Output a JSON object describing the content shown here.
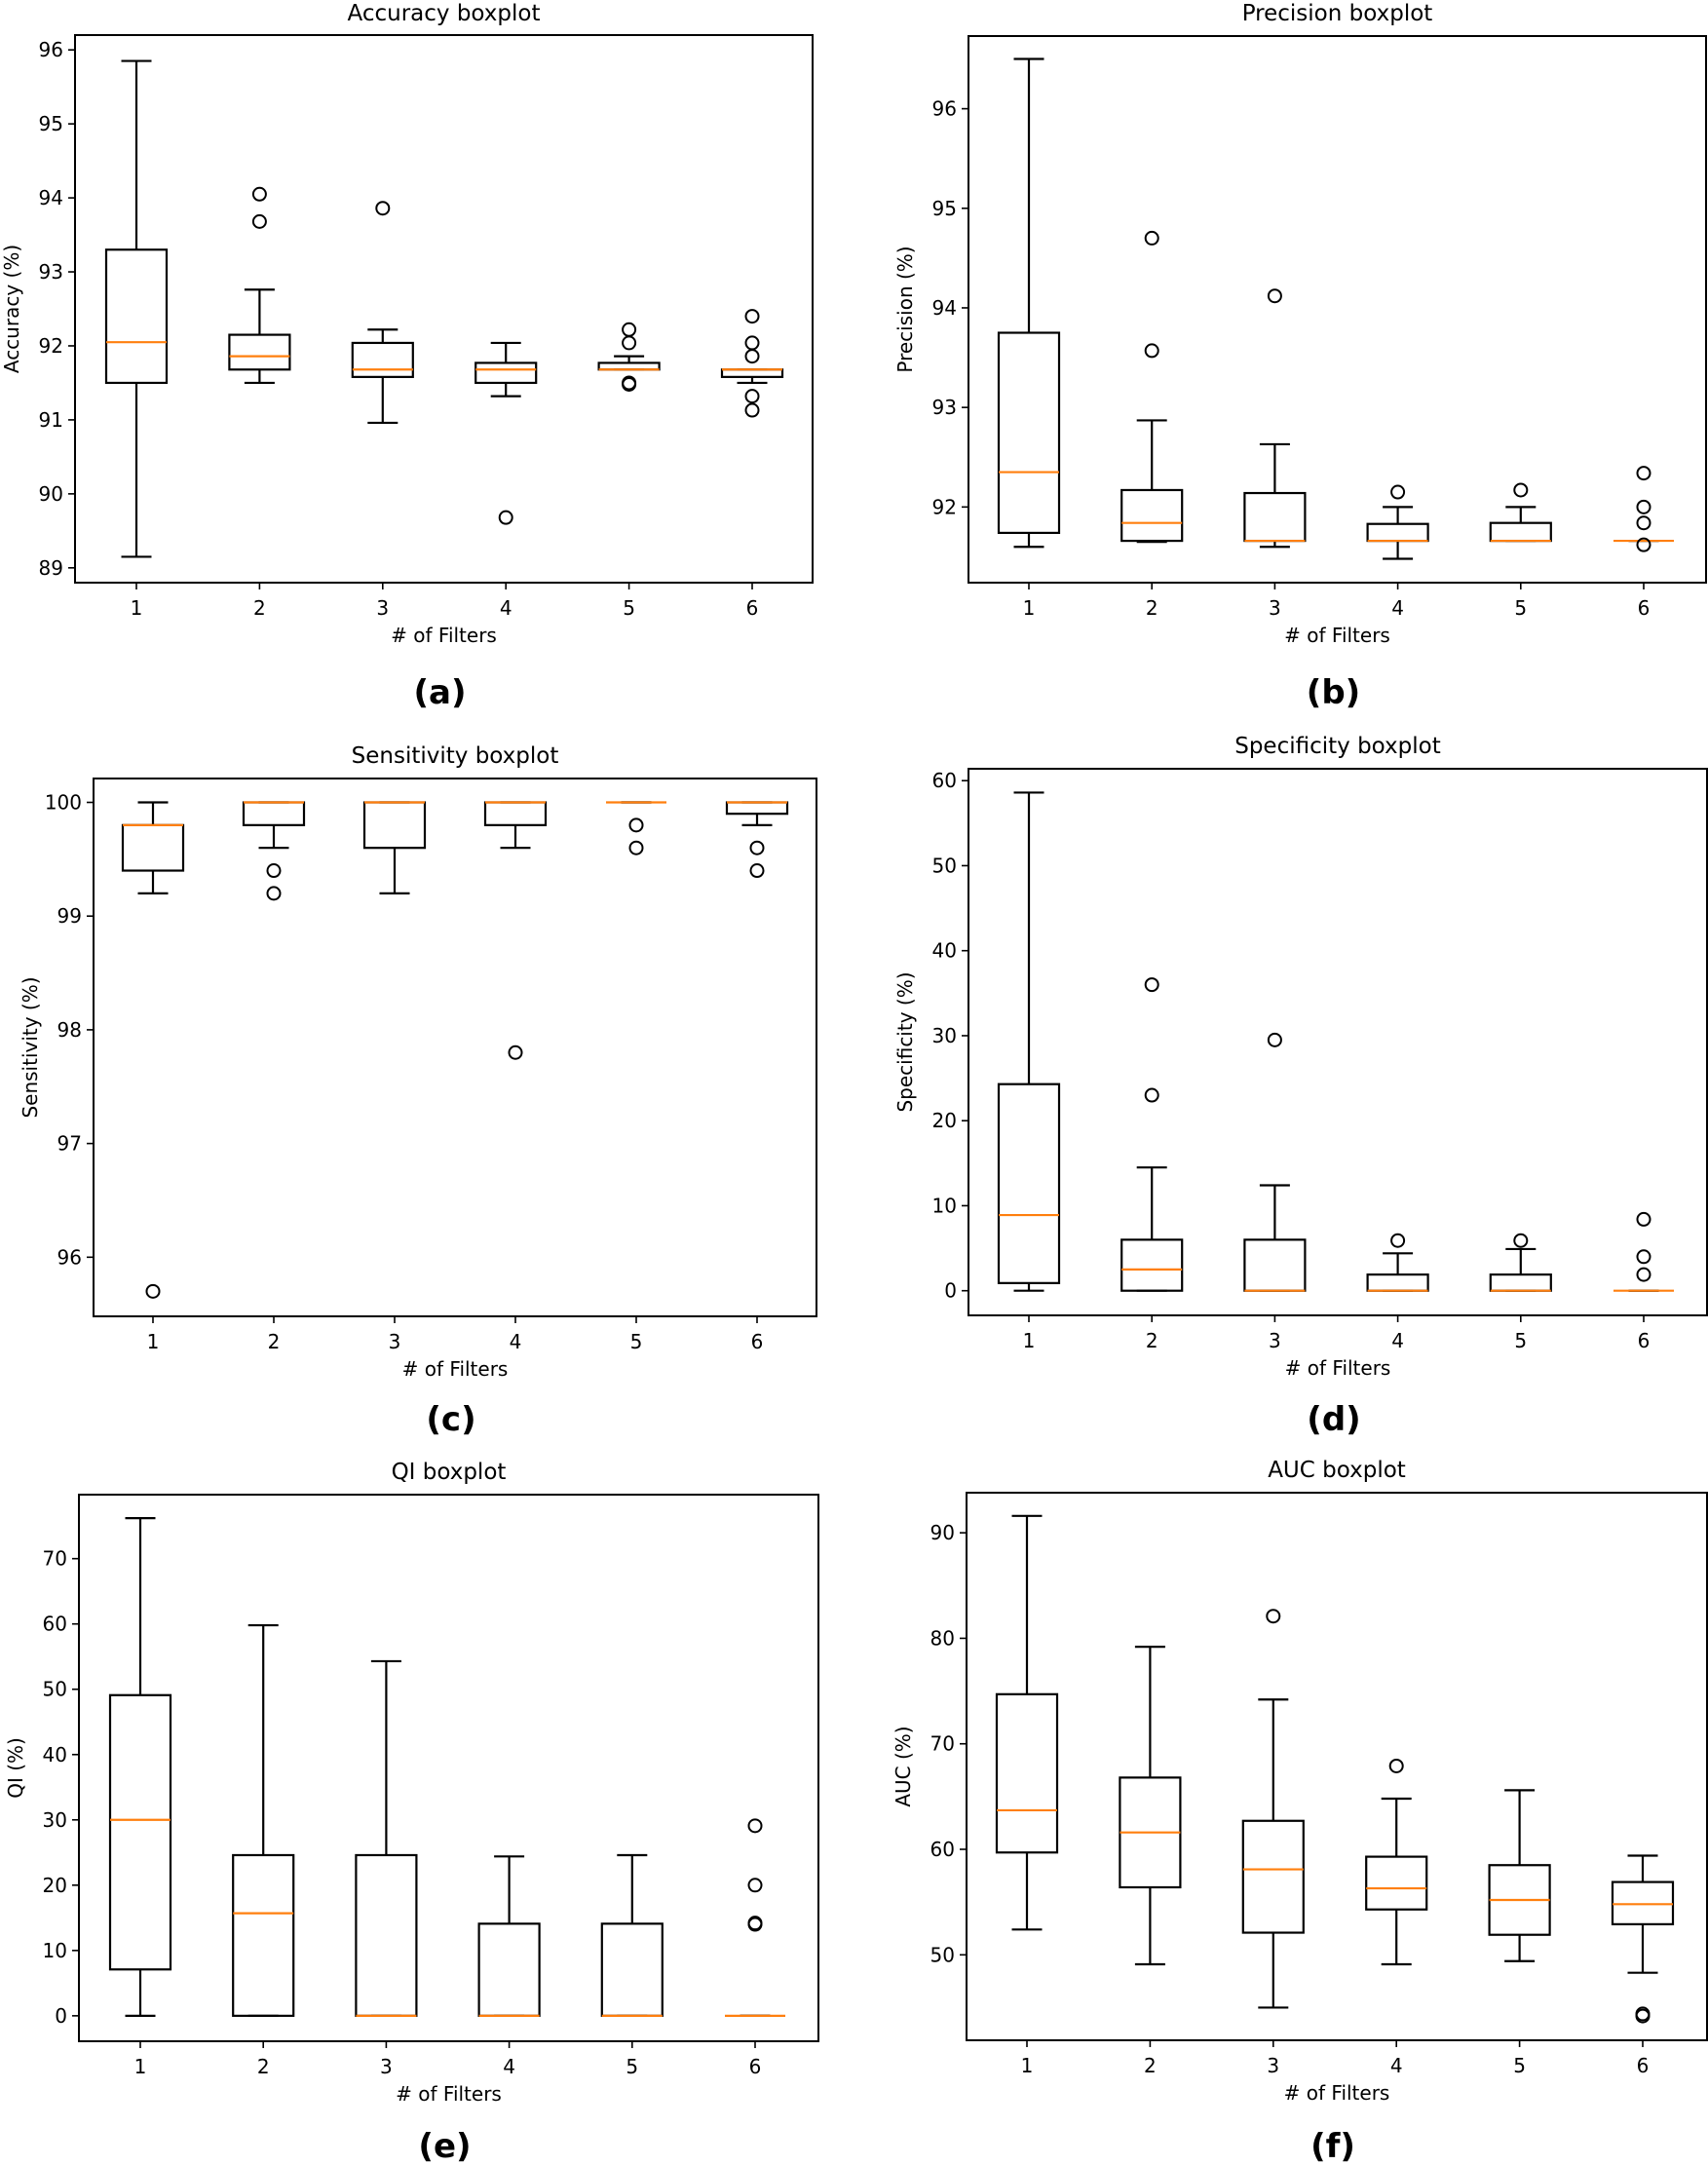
{
  "figure": {
    "median_color": "#ff7f0e",
    "box_color": "#000000"
  },
  "chart_data": [
    {
      "type": "boxplot",
      "id": "a",
      "caption": "(a)",
      "title": "Accuracy boxplot",
      "xlabel": "# of Filters",
      "ylabel": "Accuracy (%)",
      "categories": [
        "1",
        "2",
        "3",
        "4",
        "5",
        "6"
      ],
      "ylim": [
        88.8,
        96.2
      ],
      "yticks": [
        89,
        90,
        91,
        92,
        93,
        94,
        95,
        96
      ],
      "boxes": [
        {
          "whislo": 89.15,
          "q1": 91.5,
          "med": 92.05,
          "q3": 93.3,
          "whishi": 95.85,
          "fliers": []
        },
        {
          "whislo": 91.5,
          "q1": 91.68,
          "med": 91.86,
          "q3": 92.15,
          "whishi": 92.76,
          "fliers": [
            94.05,
            93.68
          ]
        },
        {
          "whislo": 90.96,
          "q1": 91.58,
          "med": 91.68,
          "q3": 92.04,
          "whishi": 92.22,
          "fliers": [
            93.86
          ]
        },
        {
          "whislo": 91.32,
          "q1": 91.5,
          "med": 91.68,
          "q3": 91.77,
          "whishi": 92.04,
          "fliers": [
            89.68
          ]
        },
        {
          "whislo": 91.68,
          "q1": 91.68,
          "med": 91.68,
          "q3": 91.77,
          "whishi": 91.86,
          "fliers": [
            92.22,
            92.04,
            91.5,
            91.48
          ]
        },
        {
          "whislo": 91.5,
          "q1": 91.58,
          "med": 91.68,
          "q3": 91.68,
          "whishi": 91.68,
          "fliers": [
            92.4,
            92.04,
            91.86,
            91.32,
            91.13
          ]
        }
      ]
    },
    {
      "type": "boxplot",
      "id": "b",
      "caption": "(b)",
      "title": "Precision boxplot",
      "xlabel": "# of Filters",
      "ylabel": "Precision (%)",
      "categories": [
        "1",
        "2",
        "3",
        "4",
        "5",
        "6"
      ],
      "ylim": [
        91.24,
        96.73
      ],
      "yticks": [
        92,
        93,
        94,
        95,
        96
      ],
      "boxes": [
        {
          "whislo": 91.6,
          "q1": 91.74,
          "med": 92.35,
          "q3": 93.75,
          "whishi": 96.5,
          "fliers": []
        },
        {
          "whislo": 91.65,
          "q1": 91.66,
          "med": 91.84,
          "q3": 92.17,
          "whishi": 92.87,
          "fliers": [
            94.7,
            93.57
          ]
        },
        {
          "whislo": 91.6,
          "q1": 91.66,
          "med": 91.66,
          "q3": 92.14,
          "whishi": 92.63,
          "fliers": [
            94.12
          ]
        },
        {
          "whislo": 91.48,
          "q1": 91.66,
          "med": 91.66,
          "q3": 91.83,
          "whishi": 92.0,
          "fliers": [
            92.15
          ]
        },
        {
          "whislo": 91.66,
          "q1": 91.66,
          "med": 91.66,
          "q3": 91.84,
          "whishi": 92.0,
          "fliers": [
            92.17
          ]
        },
        {
          "whislo": 91.66,
          "q1": 91.66,
          "med": 91.66,
          "q3": 91.66,
          "whishi": 91.66,
          "fliers": [
            92.34,
            92.0,
            91.84,
            91.62
          ]
        }
      ]
    },
    {
      "type": "boxplot",
      "id": "c",
      "caption": "(c)",
      "title": "Sensitivity boxplot",
      "xlabel": "# of Filters",
      "ylabel": "Sensitivity (%)",
      "categories": [
        "1",
        "2",
        "3",
        "4",
        "5",
        "6"
      ],
      "ylim": [
        95.48,
        100.21
      ],
      "yticks": [
        96,
        97,
        98,
        99,
        100
      ],
      "boxes": [
        {
          "whislo": 99.2,
          "q1": 99.4,
          "med": 99.8,
          "q3": 99.8,
          "whishi": 100.0,
          "fliers": [
            95.7
          ]
        },
        {
          "whislo": 99.6,
          "q1": 99.8,
          "med": 100.0,
          "q3": 100.0,
          "whishi": 100.0,
          "fliers": [
            99.4,
            99.2
          ]
        },
        {
          "whislo": 99.2,
          "q1": 99.6,
          "med": 100.0,
          "q3": 100.0,
          "whishi": 100.0,
          "fliers": []
        },
        {
          "whislo": 99.6,
          "q1": 99.8,
          "med": 100.0,
          "q3": 100.0,
          "whishi": 100.0,
          "fliers": [
            97.8
          ]
        },
        {
          "whislo": 100.0,
          "q1": 100.0,
          "med": 100.0,
          "q3": 100.0,
          "whishi": 100.0,
          "fliers": [
            99.8,
            99.6
          ]
        },
        {
          "whislo": 99.8,
          "q1": 99.9,
          "med": 100.0,
          "q3": 100.0,
          "whishi": 100.0,
          "fliers": [
            99.6,
            99.4
          ]
        }
      ]
    },
    {
      "type": "boxplot",
      "id": "d",
      "caption": "(d)",
      "title": "Specificity boxplot",
      "xlabel": "# of Filters",
      "ylabel": "Specificity (%)",
      "categories": [
        "1",
        "2",
        "3",
        "4",
        "5",
        "6"
      ],
      "ylim": [
        -2.9,
        61.4
      ],
      "yticks": [
        0,
        10,
        20,
        30,
        40,
        50,
        60
      ],
      "boxes": [
        {
          "whislo": 0.0,
          "q1": 0.9,
          "med": 8.9,
          "q3": 24.3,
          "whishi": 58.6,
          "fliers": []
        },
        {
          "whislo": 0.0,
          "q1": 0.0,
          "med": 2.5,
          "q3": 6.0,
          "whishi": 14.5,
          "fliers": [
            36.0,
            23.0
          ]
        },
        {
          "whislo": 0.0,
          "q1": 0.0,
          "med": 0.0,
          "q3": 6.0,
          "whishi": 12.4,
          "fliers": [
            29.5
          ]
        },
        {
          "whislo": 0.0,
          "q1": 0.0,
          "med": 0.0,
          "q3": 1.9,
          "whishi": 4.4,
          "fliers": [
            5.9
          ]
        },
        {
          "whislo": 0.0,
          "q1": 0.0,
          "med": 0.0,
          "q3": 1.9,
          "whishi": 4.9,
          "fliers": [
            5.9
          ]
        },
        {
          "whislo": 0.0,
          "q1": 0.0,
          "med": 0.0,
          "q3": 0.0,
          "whishi": 0.0,
          "fliers": [
            8.4,
            4.0,
            1.9
          ]
        }
      ]
    },
    {
      "type": "boxplot",
      "id": "e",
      "caption": "(e)",
      "title": "QI boxplot",
      "xlabel": "# of Filters",
      "ylabel": "QI (%)",
      "categories": [
        "1",
        "2",
        "3",
        "4",
        "5",
        "6"
      ],
      "ylim": [
        -3.9,
        79.8
      ],
      "yticks": [
        0,
        10,
        20,
        30,
        40,
        50,
        60,
        70
      ],
      "boxes": [
        {
          "whislo": 0.0,
          "q1": 7.1,
          "med": 30.0,
          "q3": 49.1,
          "whishi": 76.2,
          "fliers": []
        },
        {
          "whislo": 0.0,
          "q1": 0.0,
          "med": 15.7,
          "q3": 24.6,
          "whishi": 59.8,
          "fliers": []
        },
        {
          "whislo": 0.0,
          "q1": 0.0,
          "med": 0.0,
          "q3": 24.6,
          "whishi": 54.3,
          "fliers": []
        },
        {
          "whislo": 0.0,
          "q1": 0.0,
          "med": 0.0,
          "q3": 14.1,
          "whishi": 24.4,
          "fliers": []
        },
        {
          "whislo": 0.0,
          "q1": 0.0,
          "med": 0.0,
          "q3": 14.1,
          "whishi": 24.6,
          "fliers": []
        },
        {
          "whislo": 0.0,
          "q1": 0.0,
          "med": 0.0,
          "q3": 0.0,
          "whishi": 0.0,
          "fliers": [
            29.1,
            20.0,
            14.2,
            14.0
          ]
        }
      ]
    },
    {
      "type": "boxplot",
      "id": "f",
      "caption": "(f)",
      "title": "AUC boxplot",
      "xlabel": "# of Filters",
      "ylabel": "AUC (%)",
      "categories": [
        "1",
        "2",
        "3",
        "4",
        "5",
        "6"
      ],
      "ylim": [
        41.9,
        93.8
      ],
      "yticks": [
        50,
        60,
        70,
        80,
        90
      ],
      "boxes": [
        {
          "whislo": 52.4,
          "q1": 59.7,
          "med": 63.7,
          "q3": 74.7,
          "whishi": 91.6,
          "fliers": []
        },
        {
          "whislo": 49.1,
          "q1": 56.4,
          "med": 61.6,
          "q3": 66.8,
          "whishi": 79.2,
          "fliers": []
        },
        {
          "whislo": 45.0,
          "q1": 52.1,
          "med": 58.1,
          "q3": 62.7,
          "whishi": 74.2,
          "fliers": [
            82.1
          ]
        },
        {
          "whislo": 49.1,
          "q1": 54.3,
          "med": 56.3,
          "q3": 59.3,
          "whishi": 64.8,
          "fliers": [
            67.9
          ]
        },
        {
          "whislo": 49.4,
          "q1": 51.9,
          "med": 55.2,
          "q3": 58.5,
          "whishi": 65.6,
          "fliers": []
        },
        {
          "whislo": 48.3,
          "q1": 52.9,
          "med": 54.8,
          "q3": 56.9,
          "whishi": 59.4,
          "fliers": [
            44.4,
            44.2
          ]
        }
      ]
    }
  ]
}
